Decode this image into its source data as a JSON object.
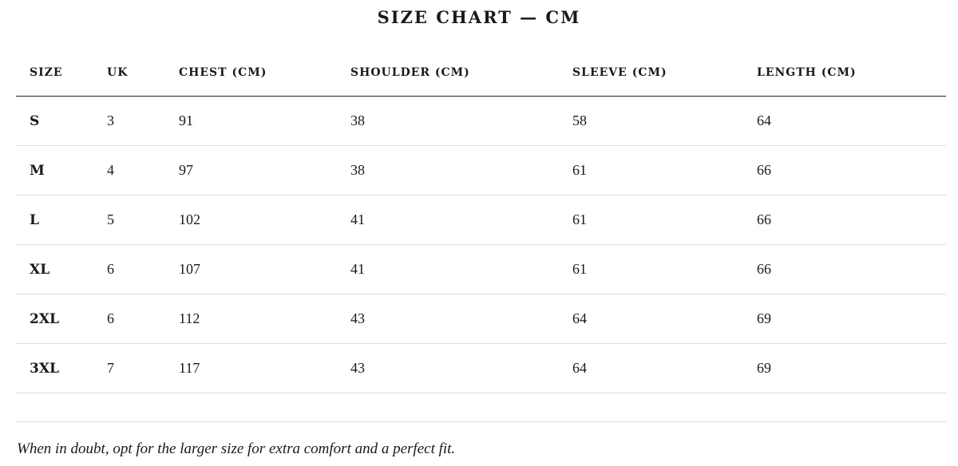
{
  "title": "SIZE CHART — CM",
  "columns": [
    "SIZE",
    "UK",
    "CHEST (CM)",
    "SHOULDER (CM)",
    "SLEEVE (CM)",
    "LENGTH (CM)"
  ],
  "rows": [
    [
      "S",
      "3",
      "91",
      "38",
      "58",
      "64"
    ],
    [
      "M",
      "4",
      "97",
      "38",
      "61",
      "66"
    ],
    [
      "L",
      "5",
      "102",
      "41",
      "61",
      "66"
    ],
    [
      "XL",
      "6",
      "107",
      "41",
      "61",
      "66"
    ],
    [
      "2XL",
      "6",
      "112",
      "43",
      "64",
      "69"
    ],
    [
      "3XL",
      "7",
      "117",
      "43",
      "64",
      "69"
    ]
  ],
  "footnote": "When in doubt, opt for the larger size for extra comfort and a perfect fit.",
  "colors": {
    "text": "#1a1a1a",
    "header_rule": "#222222",
    "row_rule": "#dddddd"
  }
}
